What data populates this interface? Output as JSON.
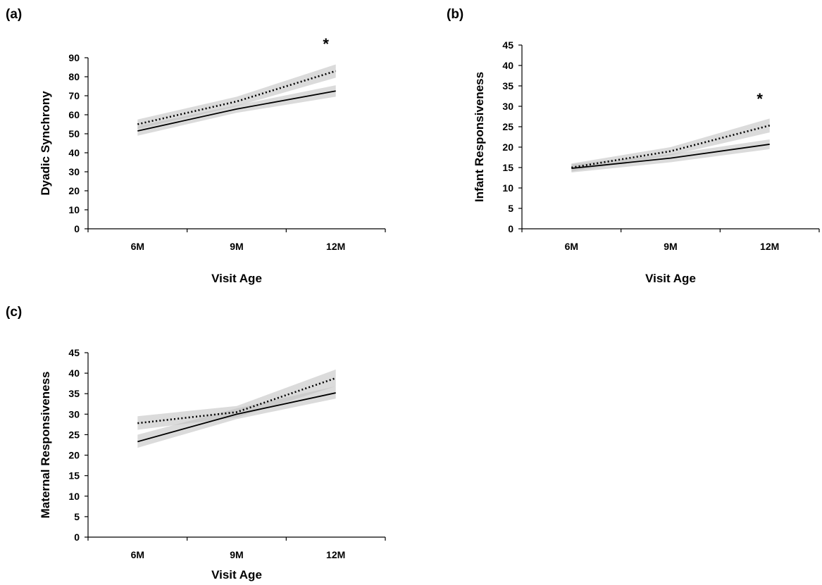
{
  "chart_data": [
    {
      "type": "line",
      "panel_label": "(a)",
      "ylabel": "Dyadic Synchrony",
      "xlabel": "Visit Age",
      "categories": [
        "6M",
        "9M",
        "12M"
      ],
      "ylim": [
        0,
        90
      ],
      "yticks": [
        0,
        10,
        20,
        30,
        40,
        50,
        60,
        70,
        80,
        90
      ],
      "annotation": "*",
      "annotation_at": "12M",
      "series": [
        {
          "style": "dotted",
          "values": [
            55,
            67,
            83
          ],
          "ci_lower": [
            52.5,
            64.5,
            79.5
          ],
          "ci_upper": [
            57.5,
            69.5,
            86.5
          ]
        },
        {
          "style": "solid",
          "values": [
            51.5,
            63,
            72.5
          ],
          "ci_lower": [
            49,
            61,
            69.5
          ],
          "ci_upper": [
            54,
            65,
            75.5
          ]
        }
      ]
    },
    {
      "type": "line",
      "panel_label": "(b)",
      "ylabel": "Infant Responsiveness",
      "xlabel": "Visit Age",
      "categories": [
        "6M",
        "9M",
        "12M"
      ],
      "ylim": [
        0,
        45
      ],
      "yticks": [
        0,
        5,
        10,
        15,
        20,
        25,
        30,
        35,
        40,
        45
      ],
      "annotation": "*",
      "annotation_at": "12M",
      "series": [
        {
          "style": "dotted",
          "values": [
            15,
            19,
            25.3
          ],
          "ci_lower": [
            14,
            18,
            23.6
          ],
          "ci_upper": [
            16,
            20,
            27
          ]
        },
        {
          "style": "solid",
          "values": [
            14.8,
            17.3,
            20.7
          ],
          "ci_lower": [
            13.8,
            16.3,
            19.5
          ],
          "ci_upper": [
            15.8,
            18.3,
            21.9
          ]
        }
      ]
    },
    {
      "type": "line",
      "panel_label": "(c)",
      "ylabel": "Maternal Responsiveness",
      "xlabel": "Visit Age",
      "categories": [
        "6M",
        "9M",
        "12M"
      ],
      "ylim": [
        0,
        45
      ],
      "yticks": [
        0,
        5,
        10,
        15,
        20,
        25,
        30,
        35,
        40,
        45
      ],
      "series": [
        {
          "style": "dotted",
          "values": [
            27.8,
            30.5,
            38.8
          ],
          "ci_lower": [
            26.2,
            29.2,
            36.8
          ],
          "ci_upper": [
            29.5,
            32,
            40.9
          ]
        },
        {
          "style": "solid",
          "values": [
            23.3,
            30,
            35.2
          ],
          "ci_lower": [
            21.8,
            28.8,
            33.8
          ],
          "ci_upper": [
            25,
            31.4,
            36.8
          ]
        }
      ]
    }
  ]
}
